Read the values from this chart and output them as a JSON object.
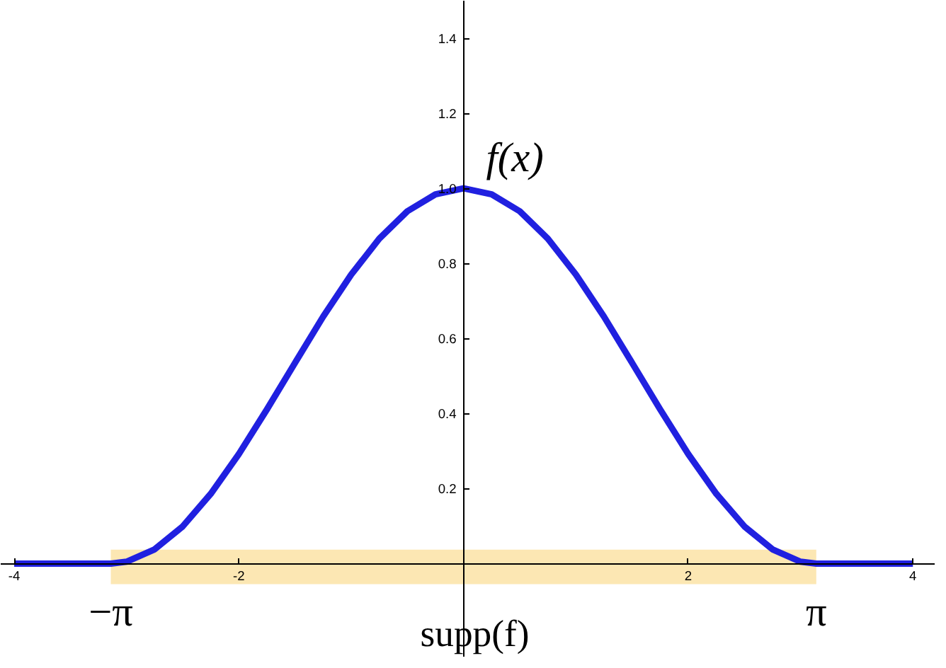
{
  "chart_data": {
    "type": "line",
    "x": [
      -4,
      -3.14,
      -3,
      -2.75,
      -2.5,
      -2.25,
      -2,
      -1.75,
      -1.5,
      -1.25,
      -1,
      -0.75,
      -0.5,
      -0.25,
      0,
      0.25,
      0.5,
      0.75,
      1,
      1.25,
      1.5,
      1.75,
      2,
      2.25,
      2.5,
      2.75,
      3,
      3.14,
      4
    ],
    "series": [
      {
        "color": "#2020e0",
        "values": [
          0,
          0,
          0.005,
          0.038,
          0.099,
          0.186,
          0.292,
          0.411,
          0.535,
          0.658,
          0.77,
          0.866,
          0.939,
          0.984,
          1,
          0.984,
          0.939,
          0.866,
          0.77,
          0.658,
          0.535,
          0.411,
          0.292,
          0.186,
          0.099,
          0.038,
          0.005,
          0,
          0
        ]
      }
    ],
    "xlim": [
      -4.12,
      4.2
    ],
    "ylim": [
      -0.25,
      1.5
    ],
    "xticks": [
      -4,
      -2,
      2,
      4
    ],
    "yticks": [
      0.2,
      0.4,
      0.6,
      0.8,
      {
        "value": 1,
        "label": "1.0"
      },
      1.2,
      1.4
    ],
    "grid": false,
    "marker": "none",
    "line_style": "solid",
    "bands": [
      {
        "axis": "x",
        "from": -3.14,
        "to": 3.14,
        "label": "supp(f)",
        "color": "#fbe3a6"
      }
    ],
    "annotations": [
      {
        "text": "f(x)",
        "x": 0,
        "y": 1
      },
      {
        "text": "−π",
        "x": -3.14,
        "y": 0
      },
      {
        "text": "π",
        "x": 3.14,
        "y": 0
      }
    ]
  }
}
